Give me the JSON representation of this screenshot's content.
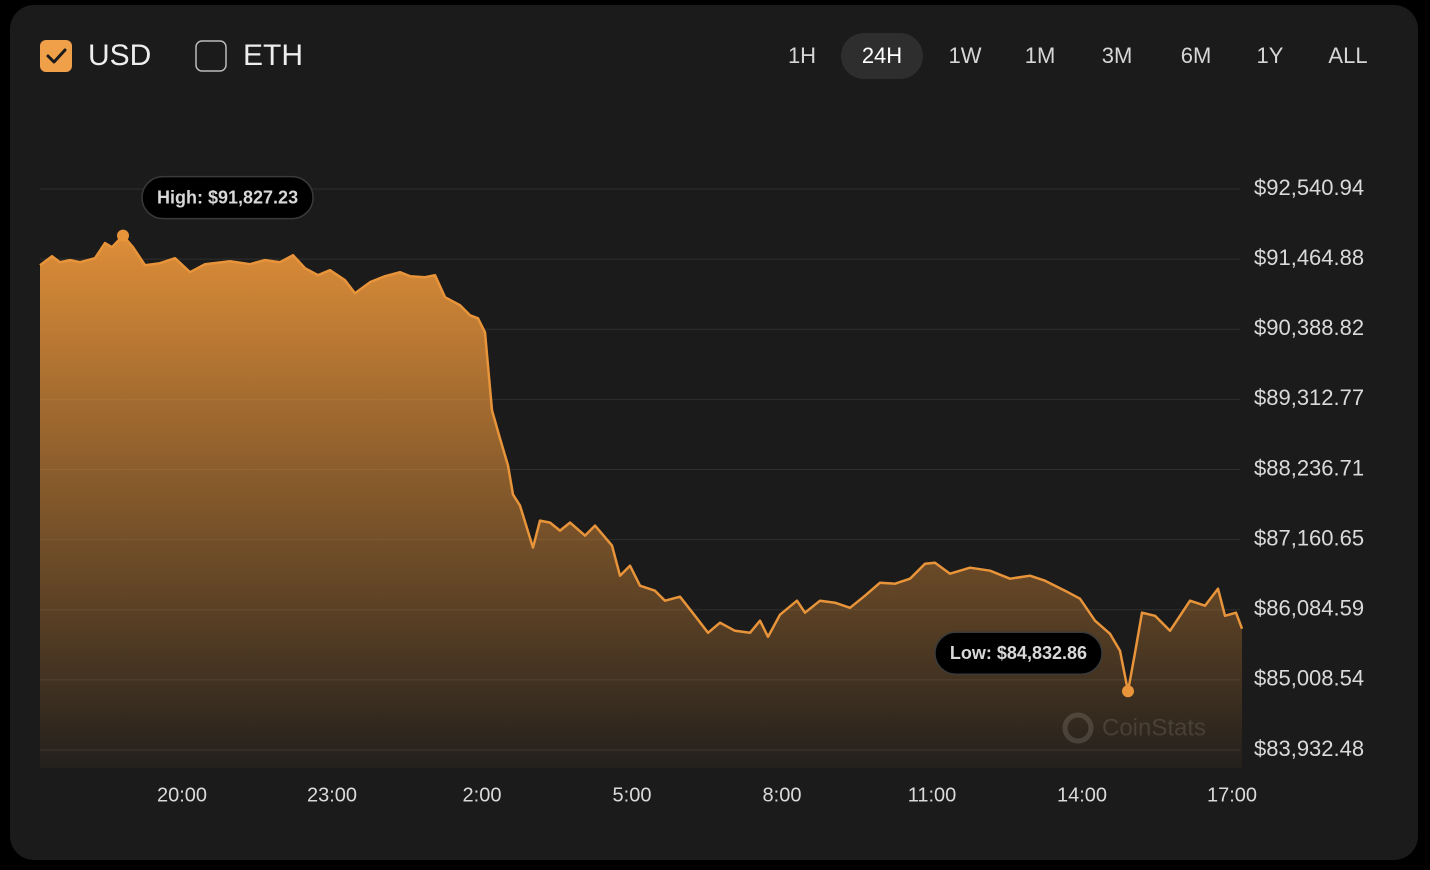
{
  "controls": {
    "currencies": [
      {
        "label": "USD",
        "checked": true
      },
      {
        "label": "ETH",
        "checked": false
      }
    ],
    "ranges": [
      "1H",
      "24H",
      "1W",
      "1M",
      "3M",
      "6M",
      "1Y",
      "ALL"
    ],
    "active_range": "24H"
  },
  "chart_data": {
    "type": "area",
    "color": "#e8943a",
    "grid": true,
    "watermark": "CoinStats",
    "x": [
      17.16,
      17.4,
      17.56,
      17.76,
      17.96,
      18.26,
      18.46,
      18.6,
      18.82,
      19.02,
      19.26,
      19.56,
      19.86,
      20.16,
      20.46,
      20.96,
      21.36,
      21.66,
      21.96,
      22.22,
      22.46,
      22.72,
      22.96,
      23.26,
      23.46,
      23.76,
      24.06,
      24.36,
      24.56,
      24.86,
      25.06,
      25.26,
      25.56,
      25.76,
      25.92,
      26.06,
      26.2,
      26.36,
      26.52,
      26.62,
      26.76,
      27.02,
      27.16,
      27.36,
      27.56,
      27.76,
      28.06,
      28.26,
      28.6,
      28.76,
      28.96,
      29.16,
      29.46,
      29.66,
      29.96,
      30.26,
      30.52,
      30.76,
      31.06,
      31.36,
      31.56,
      31.72,
      31.96,
      32.3,
      32.46,
      32.76,
      33.06,
      33.36,
      33.66,
      33.96,
      34.26,
      34.56,
      34.86,
      35.06,
      35.36,
      35.76,
      36.16,
      36.56,
      36.96,
      37.26,
      37.66,
      37.96,
      38.26,
      38.56,
      38.76,
      38.92,
      39.06,
      39.2,
      39.46,
      39.76,
      39.96,
      40.16,
      40.46,
      40.72,
      40.86,
      41.08,
      41.2
    ],
    "values": [
      91373,
      91511,
      91419,
      91450,
      91419,
      91480,
      91711,
      91649,
      91827.23,
      91649,
      91373,
      91403,
      91480,
      91265,
      91388,
      91434,
      91388,
      91450,
      91419,
      91526,
      91327,
      91219,
      91296,
      91142,
      90942,
      91111,
      91204,
      91265,
      91204,
      91188,
      91219,
      90881,
      90758,
      90604,
      90558,
      90343,
      89144,
      88713,
      88298,
      87852,
      87683,
      87038,
      87453,
      87422,
      87299,
      87422,
      87222,
      87376,
      87069,
      86607,
      86761,
      86454,
      86377,
      86223,
      86285,
      85992,
      85731,
      85885,
      85762,
      85731,
      85916,
      85670,
      86008,
      86223,
      86039,
      86223,
      86192,
      86115,
      86300,
      86500,
      86484,
      86561,
      86792,
      86807,
      86638,
      86730,
      86684,
      86561,
      86607,
      86530,
      86377,
      86254,
      85916,
      85716,
      85454,
      84832.86,
      85424,
      86039,
      85992,
      85762,
      85992,
      86223,
      86146,
      86408,
      85992,
      86039,
      85793
    ],
    "xlim": [
      17.16,
      41.2
    ],
    "xticks": [
      {
        "value": 20,
        "label": "20:00"
      },
      {
        "value": 23,
        "label": "23:00"
      },
      {
        "value": 26,
        "label": "2:00"
      },
      {
        "value": 29,
        "label": "5:00"
      },
      {
        "value": 32,
        "label": "8:00"
      },
      {
        "value": 35,
        "label": "11:00"
      },
      {
        "value": 38,
        "label": "14:00"
      },
      {
        "value": 41,
        "label": "17:00"
      }
    ],
    "ylim": [
      83655.78,
      93140.44
    ],
    "yticks": [
      {
        "value": 92540.94,
        "label": "$92,540.94"
      },
      {
        "value": 91464.88,
        "label": "$91,464.88"
      },
      {
        "value": 90388.82,
        "label": "$90,388.82"
      },
      {
        "value": 89312.77,
        "label": "$89,312.77"
      },
      {
        "value": 88236.71,
        "label": "$88,236.71"
      },
      {
        "value": 87160.65,
        "label": "$87,160.65"
      },
      {
        "value": 86084.59,
        "label": "$86,084.59"
      },
      {
        "value": 85008.54,
        "label": "$85,008.54"
      },
      {
        "value": 83932.48,
        "label": "$83,932.48"
      }
    ],
    "annotations": [
      {
        "text": "High: $91,827.23",
        "x": 18.82,
        "y": 91827.23
      },
      {
        "text": "Low: $84,832.86",
        "x": 38.92,
        "y": 84832.86
      }
    ]
  }
}
